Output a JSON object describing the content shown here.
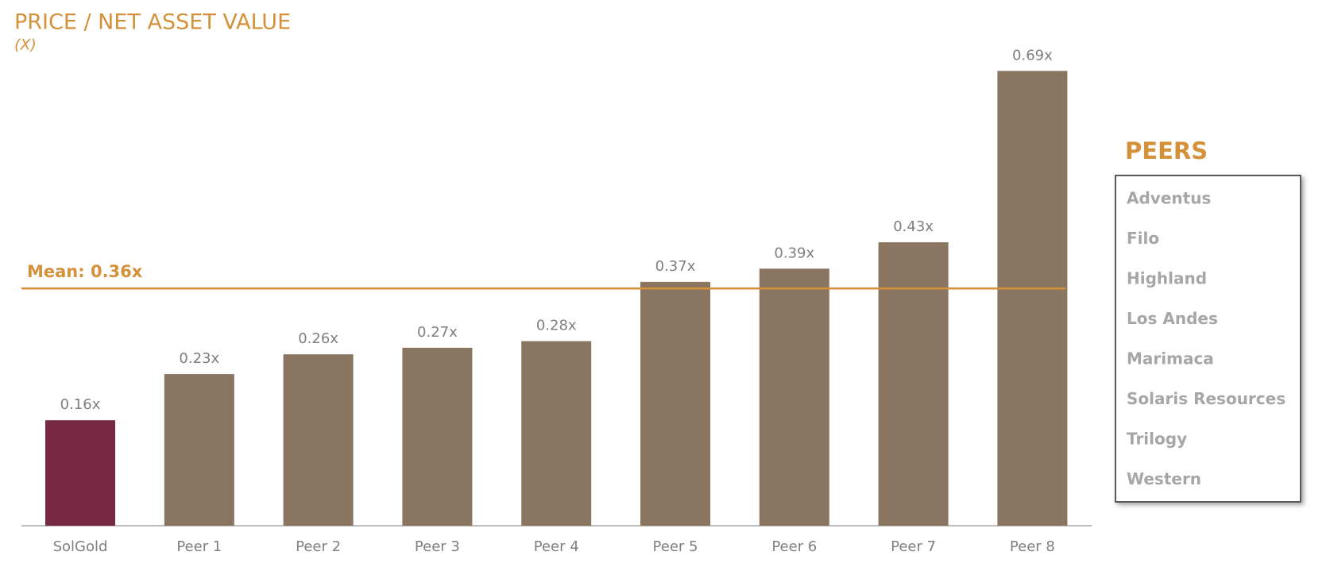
{
  "chart_data": {
    "type": "bar",
    "title": "PRICE / NET ASSET VALUE",
    "subtitle": "(X)",
    "categories": [
      "SolGold",
      "Peer 1",
      "Peer 2",
      "Peer 3",
      "Peer 4",
      "Peer 5",
      "Peer 6",
      "Peer 7",
      "Peer 8"
    ],
    "values": [
      0.16,
      0.23,
      0.26,
      0.27,
      0.28,
      0.37,
      0.39,
      0.43,
      0.69
    ],
    "value_labels": [
      "0.16x",
      "0.23x",
      "0.26x",
      "0.27x",
      "0.28x",
      "0.37x",
      "0.39x",
      "0.43x",
      "0.69x"
    ],
    "colors": [
      "#772843",
      "#8a7560",
      "#8a7560",
      "#8a7560",
      "#8a7560",
      "#8a7560",
      "#8a7560",
      "#8a7560",
      "#8a7560"
    ],
    "ylim": [
      0,
      0.7
    ],
    "mean": 0.36,
    "mean_label": "Mean: 0.36x",
    "mean_color": "#d4913a"
  },
  "peers_box": {
    "title": "PEERS",
    "items": [
      "Adventus",
      "Filo",
      "Highland",
      "Los Andes",
      "Marimaca",
      "Solaris Resources",
      "Trilogy",
      "Western"
    ]
  }
}
